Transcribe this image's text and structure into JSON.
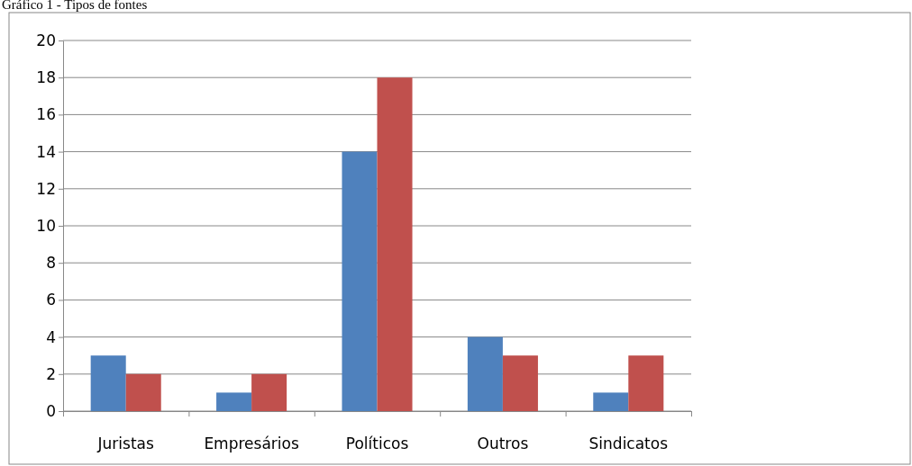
{
  "chart_data": {
    "type": "bar",
    "title": "Gráfico 1 - Tipos de fontes",
    "categories": [
      "Juristas",
      "Empresários",
      "Políticos",
      "Outros",
      "Sindicatos"
    ],
    "series": [
      {
        "color": "#4f81bd",
        "values": [
          3,
          1,
          14,
          4,
          1
        ]
      },
      {
        "color": "#c0504d",
        "values": [
          2,
          2,
          18,
          3,
          3
        ]
      }
    ],
    "ylim": [
      0,
      20
    ],
    "yticks": [
      0,
      2,
      4,
      6,
      8,
      10,
      12,
      14,
      16,
      18,
      20
    ],
    "grid": "y"
  }
}
